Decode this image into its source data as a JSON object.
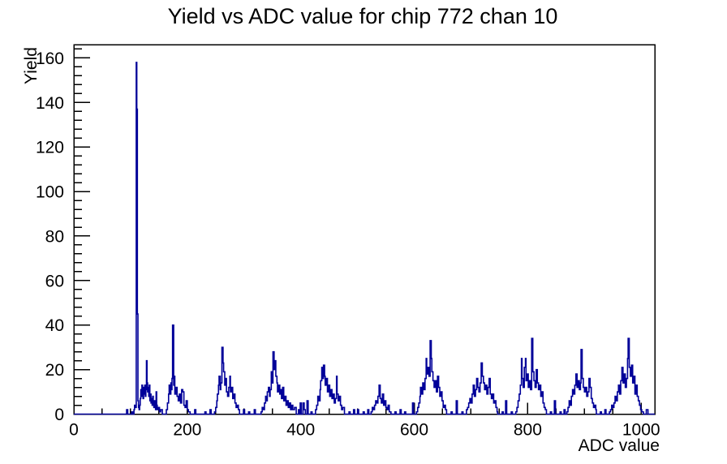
{
  "chart_data": {
    "type": "bar",
    "subtype": "step-histogram",
    "title": "Yield vs ADC value for chip 772 chan 10",
    "xlabel": "ADC value",
    "ylabel": "Yield",
    "xlim": [
      0,
      1024
    ],
    "ylim": [
      0,
      166
    ],
    "x_major_ticks": [
      0,
      200,
      400,
      600,
      800,
      1000
    ],
    "x_minor_step": 50,
    "y_major_ticks": [
      0,
      20,
      40,
      60,
      80,
      100,
      120,
      140,
      160
    ],
    "y_minor_step": 4,
    "grid": false,
    "legend": "none",
    "line_color": "#000099",
    "frame_color": "#000000",
    "steps": [
      [
        0,
        0
      ],
      [
        93,
        2
      ],
      [
        95,
        0
      ],
      [
        102,
        1
      ],
      [
        104,
        0
      ],
      [
        106,
        2
      ],
      [
        107,
        4
      ],
      [
        109,
        3
      ],
      [
        110,
        158
      ],
      [
        111,
        137
      ],
      [
        112,
        45
      ],
      [
        113,
        6
      ],
      [
        114,
        3
      ],
      [
        115,
        2
      ],
      [
        116,
        4
      ],
      [
        117,
        7
      ],
      [
        118,
        11
      ],
      [
        119,
        8
      ],
      [
        120,
        13
      ],
      [
        121,
        10
      ],
      [
        122,
        7
      ],
      [
        123,
        12
      ],
      [
        124,
        9
      ],
      [
        125,
        13
      ],
      [
        126,
        8
      ],
      [
        127,
        11
      ],
      [
        128,
        24
      ],
      [
        129,
        14
      ],
      [
        130,
        10
      ],
      [
        131,
        12
      ],
      [
        132,
        8
      ],
      [
        133,
        13
      ],
      [
        134,
        6
      ],
      [
        135,
        9
      ],
      [
        136,
        5
      ],
      [
        137,
        7
      ],
      [
        138,
        4
      ],
      [
        139,
        8
      ],
      [
        140,
        5
      ],
      [
        141,
        3
      ],
      [
        142,
        6
      ],
      [
        143,
        3
      ],
      [
        144,
        2
      ],
      [
        145,
        10
      ],
      [
        146,
        4
      ],
      [
        147,
        2
      ],
      [
        149,
        3
      ],
      [
        151,
        1
      ],
      [
        153,
        2
      ],
      [
        156,
        0
      ],
      [
        163,
        2
      ],
      [
        165,
        5
      ],
      [
        167,
        9
      ],
      [
        168,
        13
      ],
      [
        170,
        9
      ],
      [
        171,
        14
      ],
      [
        172,
        11
      ],
      [
        173,
        16
      ],
      [
        174,
        40
      ],
      [
        176,
        13
      ],
      [
        177,
        17
      ],
      [
        178,
        9
      ],
      [
        180,
        12
      ],
      [
        182,
        8
      ],
      [
        184,
        6
      ],
      [
        186,
        9
      ],
      [
        188,
        5
      ],
      [
        190,
        11
      ],
      [
        192,
        10
      ],
      [
        194,
        4
      ],
      [
        196,
        3
      ],
      [
        198,
        6
      ],
      [
        200,
        2
      ],
      [
        202,
        1
      ],
      [
        205,
        0
      ],
      [
        213,
        2
      ],
      [
        215,
        0
      ],
      [
        231,
        1
      ],
      [
        233,
        0
      ],
      [
        240,
        2
      ],
      [
        242,
        0
      ],
      [
        248,
        1
      ],
      [
        250,
        3
      ],
      [
        252,
        6
      ],
      [
        253,
        9
      ],
      [
        255,
        13
      ],
      [
        256,
        17
      ],
      [
        258,
        11
      ],
      [
        259,
        14
      ],
      [
        261,
        30
      ],
      [
        263,
        23
      ],
      [
        264,
        19
      ],
      [
        266,
        13
      ],
      [
        267,
        16
      ],
      [
        269,
        10
      ],
      [
        271,
        8
      ],
      [
        273,
        12
      ],
      [
        275,
        17
      ],
      [
        276,
        10
      ],
      [
        278,
        12
      ],
      [
        280,
        7
      ],
      [
        282,
        9
      ],
      [
        284,
        5
      ],
      [
        286,
        3
      ],
      [
        288,
        4
      ],
      [
        290,
        2
      ],
      [
        292,
        0
      ],
      [
        299,
        2
      ],
      [
        301,
        0
      ],
      [
        308,
        1
      ],
      [
        310,
        0
      ],
      [
        318,
        2
      ],
      [
        320,
        0
      ],
      [
        330,
        1
      ],
      [
        332,
        3
      ],
      [
        334,
        2
      ],
      [
        336,
        5
      ],
      [
        338,
        8
      ],
      [
        340,
        6
      ],
      [
        341,
        10
      ],
      [
        343,
        12
      ],
      [
        345,
        8
      ],
      [
        346,
        11
      ],
      [
        348,
        19
      ],
      [
        350,
        14
      ],
      [
        351,
        28
      ],
      [
        353,
        20
      ],
      [
        354,
        24
      ],
      [
        356,
        17
      ],
      [
        358,
        14
      ],
      [
        359,
        10
      ],
      [
        361,
        13
      ],
      [
        363,
        9
      ],
      [
        364,
        11
      ],
      [
        366,
        7
      ],
      [
        368,
        12
      ],
      [
        370,
        6
      ],
      [
        372,
        8
      ],
      [
        374,
        4
      ],
      [
        376,
        6
      ],
      [
        378,
        3
      ],
      [
        380,
        5
      ],
      [
        382,
        2
      ],
      [
        384,
        4
      ],
      [
        386,
        2
      ],
      [
        389,
        3
      ],
      [
        392,
        0
      ],
      [
        396,
        2
      ],
      [
        398,
        0
      ],
      [
        399,
        5
      ],
      [
        401,
        0
      ],
      [
        404,
        5
      ],
      [
        406,
        2
      ],
      [
        408,
        0
      ],
      [
        411,
        6
      ],
      [
        413,
        0
      ],
      [
        418,
        1
      ],
      [
        420,
        0
      ],
      [
        426,
        2
      ],
      [
        428,
        4
      ],
      [
        430,
        8
      ],
      [
        432,
        6
      ],
      [
        434,
        11
      ],
      [
        435,
        15
      ],
      [
        437,
        21
      ],
      [
        438,
        16
      ],
      [
        440,
        22
      ],
      [
        442,
        17
      ],
      [
        443,
        13
      ],
      [
        445,
        16
      ],
      [
        447,
        10
      ],
      [
        449,
        13
      ],
      [
        451,
        8
      ],
      [
        453,
        11
      ],
      [
        455,
        7
      ],
      [
        457,
        9
      ],
      [
        459,
        5
      ],
      [
        461,
        7
      ],
      [
        463,
        17
      ],
      [
        464,
        9
      ],
      [
        466,
        6
      ],
      [
        468,
        8
      ],
      [
        470,
        4
      ],
      [
        472,
        2
      ],
      [
        474,
        3
      ],
      [
        477,
        0
      ],
      [
        485,
        1
      ],
      [
        487,
        0
      ],
      [
        493,
        2
      ],
      [
        495,
        0
      ],
      [
        500,
        2
      ],
      [
        502,
        0
      ],
      [
        510,
        1
      ],
      [
        512,
        0
      ],
      [
        518,
        2
      ],
      [
        520,
        0
      ],
      [
        524,
        1
      ],
      [
        526,
        3
      ],
      [
        528,
        2
      ],
      [
        530,
        4
      ],
      [
        532,
        6
      ],
      [
        534,
        5
      ],
      [
        536,
        8
      ],
      [
        538,
        13
      ],
      [
        540,
        7
      ],
      [
        542,
        5
      ],
      [
        544,
        9
      ],
      [
        546,
        4
      ],
      [
        548,
        6
      ],
      [
        550,
        3
      ],
      [
        552,
        2
      ],
      [
        554,
        4
      ],
      [
        556,
        1
      ],
      [
        559,
        0
      ],
      [
        566,
        1
      ],
      [
        568,
        0
      ],
      [
        575,
        2
      ],
      [
        577,
        0
      ],
      [
        583,
        1
      ],
      [
        585,
        0
      ],
      [
        597,
        5
      ],
      [
        599,
        0
      ],
      [
        604,
        1
      ],
      [
        606,
        3
      ],
      [
        608,
        5
      ],
      [
        610,
        8
      ],
      [
        611,
        12
      ],
      [
        613,
        9
      ],
      [
        615,
        14
      ],
      [
        617,
        11
      ],
      [
        619,
        16
      ],
      [
        621,
        25
      ],
      [
        622,
        18
      ],
      [
        624,
        21
      ],
      [
        626,
        17
      ],
      [
        628,
        33
      ],
      [
        630,
        25
      ],
      [
        631,
        19
      ],
      [
        633,
        15
      ],
      [
        635,
        12
      ],
      [
        637,
        15
      ],
      [
        639,
        10
      ],
      [
        641,
        17
      ],
      [
        643,
        12
      ],
      [
        645,
        8
      ],
      [
        647,
        10
      ],
      [
        649,
        6
      ],
      [
        651,
        3
      ],
      [
        653,
        4
      ],
      [
        655,
        2
      ],
      [
        657,
        0
      ],
      [
        665,
        1
      ],
      [
        667,
        0
      ],
      [
        674,
        6
      ],
      [
        676,
        0
      ],
      [
        684,
        1
      ],
      [
        686,
        0
      ],
      [
        692,
        2
      ],
      [
        694,
        3
      ],
      [
        696,
        5
      ],
      [
        698,
        7
      ],
      [
        700,
        5
      ],
      [
        702,
        9
      ],
      [
        704,
        13
      ],
      [
        706,
        8
      ],
      [
        708,
        11
      ],
      [
        710,
        16
      ],
      [
        712,
        12
      ],
      [
        714,
        10
      ],
      [
        716,
        14
      ],
      [
        718,
        23
      ],
      [
        720,
        17
      ],
      [
        722,
        14
      ],
      [
        724,
        11
      ],
      [
        726,
        13
      ],
      [
        728,
        9
      ],
      [
        730,
        12
      ],
      [
        732,
        16
      ],
      [
        734,
        9
      ],
      [
        736,
        7
      ],
      [
        738,
        9
      ],
      [
        740,
        5
      ],
      [
        742,
        6
      ],
      [
        744,
        3
      ],
      [
        746,
        1
      ],
      [
        747,
        0
      ],
      [
        755,
        1
      ],
      [
        757,
        0
      ],
      [
        761,
        6
      ],
      [
        763,
        0
      ],
      [
        771,
        1
      ],
      [
        773,
        0
      ],
      [
        779,
        1
      ],
      [
        781,
        3
      ],
      [
        783,
        6
      ],
      [
        785,
        9
      ],
      [
        787,
        13
      ],
      [
        789,
        25
      ],
      [
        790,
        16
      ],
      [
        792,
        12
      ],
      [
        794,
        21
      ],
      [
        796,
        25
      ],
      [
        797,
        15
      ],
      [
        799,
        18
      ],
      [
        801,
        12
      ],
      [
        803,
        15
      ],
      [
        805,
        11
      ],
      [
        807,
        34
      ],
      [
        809,
        19
      ],
      [
        811,
        15
      ],
      [
        813,
        12
      ],
      [
        815,
        20
      ],
      [
        817,
        14
      ],
      [
        819,
        11
      ],
      [
        821,
        13
      ],
      [
        823,
        8
      ],
      [
        825,
        10
      ],
      [
        827,
        5
      ],
      [
        829,
        3
      ],
      [
        831,
        2
      ],
      [
        833,
        0
      ],
      [
        840,
        1
      ],
      [
        842,
        0
      ],
      [
        847,
        6
      ],
      [
        849,
        0
      ],
      [
        857,
        1
      ],
      [
        859,
        0
      ],
      [
        864,
        2
      ],
      [
        866,
        0
      ],
      [
        869,
        1
      ],
      [
        871,
        3
      ],
      [
        873,
        6
      ],
      [
        875,
        4
      ],
      [
        877,
        8
      ],
      [
        879,
        11
      ],
      [
        881,
        9
      ],
      [
        883,
        13
      ],
      [
        885,
        18
      ],
      [
        887,
        12
      ],
      [
        889,
        15
      ],
      [
        891,
        11
      ],
      [
        893,
        14
      ],
      [
        894,
        29
      ],
      [
        896,
        16
      ],
      [
        898,
        12
      ],
      [
        900,
        10
      ],
      [
        902,
        12
      ],
      [
        904,
        8
      ],
      [
        906,
        10
      ],
      [
        908,
        16
      ],
      [
        910,
        12
      ],
      [
        912,
        7
      ],
      [
        914,
        5
      ],
      [
        916,
        3
      ],
      [
        918,
        4
      ],
      [
        920,
        2
      ],
      [
        921,
        0
      ],
      [
        928,
        1
      ],
      [
        930,
        0
      ],
      [
        936,
        2
      ],
      [
        938,
        0
      ],
      [
        944,
        1
      ],
      [
        946,
        2
      ],
      [
        948,
        4
      ],
      [
        950,
        3
      ],
      [
        952,
        5
      ],
      [
        954,
        8
      ],
      [
        956,
        6
      ],
      [
        958,
        10
      ],
      [
        960,
        13
      ],
      [
        962,
        9
      ],
      [
        964,
        15
      ],
      [
        966,
        21
      ],
      [
        968,
        14
      ],
      [
        970,
        18
      ],
      [
        972,
        12
      ],
      [
        974,
        16
      ],
      [
        976,
        25
      ],
      [
        977,
        34
      ],
      [
        979,
        21
      ],
      [
        981,
        17
      ],
      [
        983,
        22
      ],
      [
        985,
        14
      ],
      [
        987,
        17
      ],
      [
        989,
        9
      ],
      [
        991,
        13
      ],
      [
        993,
        8
      ],
      [
        995,
        6
      ],
      [
        997,
        4
      ],
      [
        999,
        2
      ],
      [
        1001,
        1
      ],
      [
        1004,
        0
      ],
      [
        1009,
        2
      ],
      [
        1012,
        0
      ],
      [
        1024,
        0
      ]
    ]
  }
}
